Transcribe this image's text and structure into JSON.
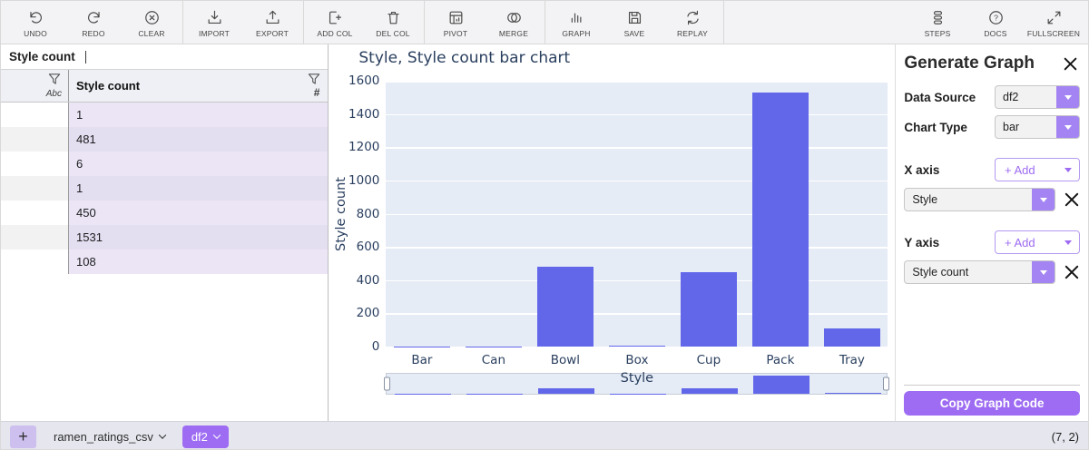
{
  "colors": {
    "accent": "#9d6cf2",
    "accent_arrow": "#a384f2",
    "bar_color": "#6267ea",
    "plot_bg": "#e5ecf6",
    "axis_text": "#2a3f5f"
  },
  "toolbar": {
    "undo": "UNDO",
    "redo": "REDO",
    "clear": "CLEAR",
    "import": "IMPORT",
    "export": "EXPORT",
    "add_col": "ADD COL",
    "del_col": "DEL COL",
    "pivot": "PIVOT",
    "merge": "MERGE",
    "graph": "GRAPH",
    "save": "SAVE",
    "replay": "REPLAY",
    "steps": "STEPS",
    "docs": "DOCS",
    "fullscreen": "FULLSCREEN"
  },
  "formula_bar": {
    "value": "Style count"
  },
  "table": {
    "index_dtype": "Abc",
    "value_column": {
      "name": "Style count",
      "dtype": "#"
    },
    "rows": [
      "1",
      "481",
      "6",
      "1",
      "450",
      "1531",
      "108"
    ]
  },
  "chart_data": {
    "type": "bar",
    "title": "Style, Style count bar chart",
    "categories": [
      "Bar",
      "Can",
      "Bowl",
      "Box",
      "Cup",
      "Pack",
      "Tray"
    ],
    "values": [
      1,
      1,
      481,
      6,
      450,
      1531,
      108
    ],
    "xlabel": "Style",
    "ylabel": "Style count",
    "ylim": [
      0,
      1600
    ],
    "yticks": [
      0,
      200,
      400,
      600,
      800,
      1000,
      1200,
      1400,
      1600
    ],
    "grid": "on",
    "legend": "none",
    "rangeslider": true
  },
  "taskpane": {
    "title": "Generate Graph",
    "data_source_label": "Data Source",
    "data_source_value": "df2",
    "chart_type_label": "Chart Type",
    "chart_type_value": "bar",
    "x_axis_label": "X axis",
    "x_axis_add": "+ Add",
    "x_axis_value": "Style",
    "y_axis_label": "Y axis",
    "y_axis_add": "+ Add",
    "y_axis_value": "Style count",
    "copy_button": "Copy Graph Code"
  },
  "footer": {
    "add_button": "+",
    "tabs": [
      "ramen_ratings_csv",
      "df2"
    ],
    "active_tab": "df2",
    "shape": "(7, 2)"
  }
}
